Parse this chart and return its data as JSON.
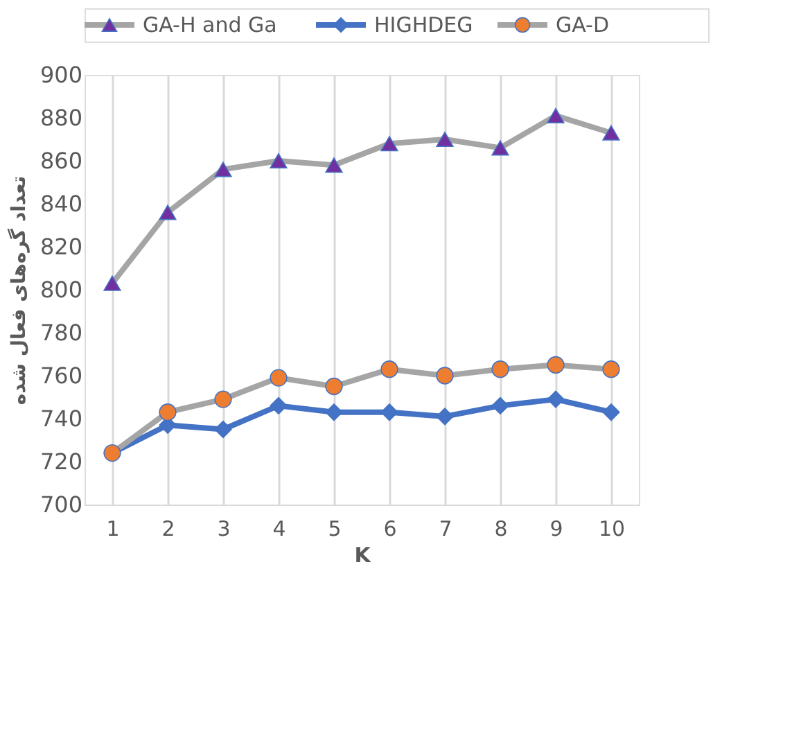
{
  "chart_data": {
    "type": "line",
    "xlabel": "K",
    "ylabel": "تعداد گره‌های فعال شده",
    "categories": [
      "1",
      "2",
      "3",
      "4",
      "5",
      "6",
      "7",
      "8",
      "9",
      "10"
    ],
    "series": [
      {
        "name": "GA-H and Ga",
        "color": "#a5a5a5",
        "marker": "triangle",
        "colors": [
          "#7030a0",
          "#7030a0",
          "#7030a0",
          "#7030a0",
          "#7030a0",
          "#7030a0",
          "#7030a0",
          "#7030a0",
          "#7030a0",
          "#7030a0"
        ],
        "values": [
          803,
          836,
          856,
          860,
          858,
          868,
          870,
          866,
          881,
          873
        ]
      },
      {
        "name": "HIGHDEG",
        "color": "#4472c4",
        "marker": "diamond",
        "colors": [
          "#4472c4",
          "#4472c4",
          "#4472c4",
          "#4472c4",
          "#4472c4",
          "#4472c4",
          "#4472c4",
          "#4472c4",
          "#4472c4",
          "#4472c4"
        ],
        "values": [
          724,
          737,
          735,
          746,
          743,
          743,
          741,
          746,
          749,
          743
        ]
      },
      {
        "name": "GA-D",
        "color": "#a5a5a5",
        "marker": "circle",
        "colors": [
          "#ed7d31",
          "#ed7d31",
          "#ed7d31",
          "#ed7d31",
          "#ed7d31",
          "#ed7d31",
          "#ed7d31",
          "#ed7d31",
          "#ed7d31",
          "#ed7d31"
        ],
        "values": [
          724,
          743,
          749,
          759,
          755,
          763,
          760,
          763,
          765,
          763
        ]
      }
    ],
    "ylim": [
      700,
      900
    ],
    "yticks": [
      700,
      720,
      740,
      760,
      780,
      800,
      820,
      840,
      860,
      880,
      900
    ],
    "grid": "x",
    "legend": "top",
    "line_style": "solid"
  }
}
